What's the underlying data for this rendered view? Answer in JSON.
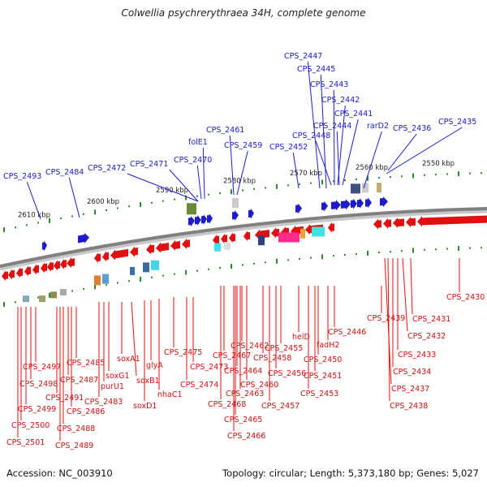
{
  "title": "Colwellia psychrerythraea 34H, complete genome",
  "footer": {
    "accession": "Accession: NC_003910",
    "topology": "Topology: circular; Length: 5,373,180 bp; Genes: 5,027"
  },
  "scale_ticks": [
    "2610 kbp",
    "2600 kbp",
    "2590 kbp",
    "2580 kbp",
    "2570 kbp",
    "2560 kbp",
    "2550 kbp"
  ],
  "colors": {
    "forward": "#1c1ccc",
    "reverse": "#e01010",
    "backbone": "#808080",
    "ticks": "#2e8a2e"
  },
  "top_labels": [
    "CPS_2493",
    "CPS_2484",
    "CPS_2472",
    "CPS_2471",
    "CPS_2470",
    "folE1",
    "CPS_2461",
    "CPS_2459",
    "CPS_2452",
    "CPS_2448",
    "CPS_2447",
    "CPS_2445",
    "CPS_2444",
    "CPS_2443",
    "CPS_2442",
    "CPS_2441",
    "rarD2",
    "CPS_2436",
    "CPS_2435"
  ],
  "bottom_labels": [
    "CPS_2501",
    "CPS_2500",
    "CPS_2499",
    "CPS_2498",
    "CPS_2497",
    "CPS_2491",
    "CPS_2489",
    "CPS_2488",
    "CPS_2487",
    "CPS_2486",
    "CPS_2485",
    "CPS_2483",
    "purU1",
    "soxG1",
    "soxA1",
    "soxB1",
    "soxD1",
    "glyA",
    "nhaC1",
    "CPS_2475",
    "CPS_2474",
    "CPS_2473",
    "CPS_2468",
    "CPS_2467",
    "CPS_2466",
    "CPS_2465",
    "CPS_2464",
    "CPS_2463",
    "CPS_2462",
    "CPS_2460",
    "CPS_2458",
    "CPS_2457",
    "CPS_2456",
    "CPS_2455",
    "helD",
    "CPS_2453",
    "CPS_2451",
    "CPS_2450",
    "fadH2",
    "CPS_2446",
    "CPS_2439",
    "CPS_2438",
    "CPS_2437",
    "CPS_2434",
    "CPS_2433",
    "CPS_2432",
    "CPS_2431",
    "CPS_2430"
  ]
}
